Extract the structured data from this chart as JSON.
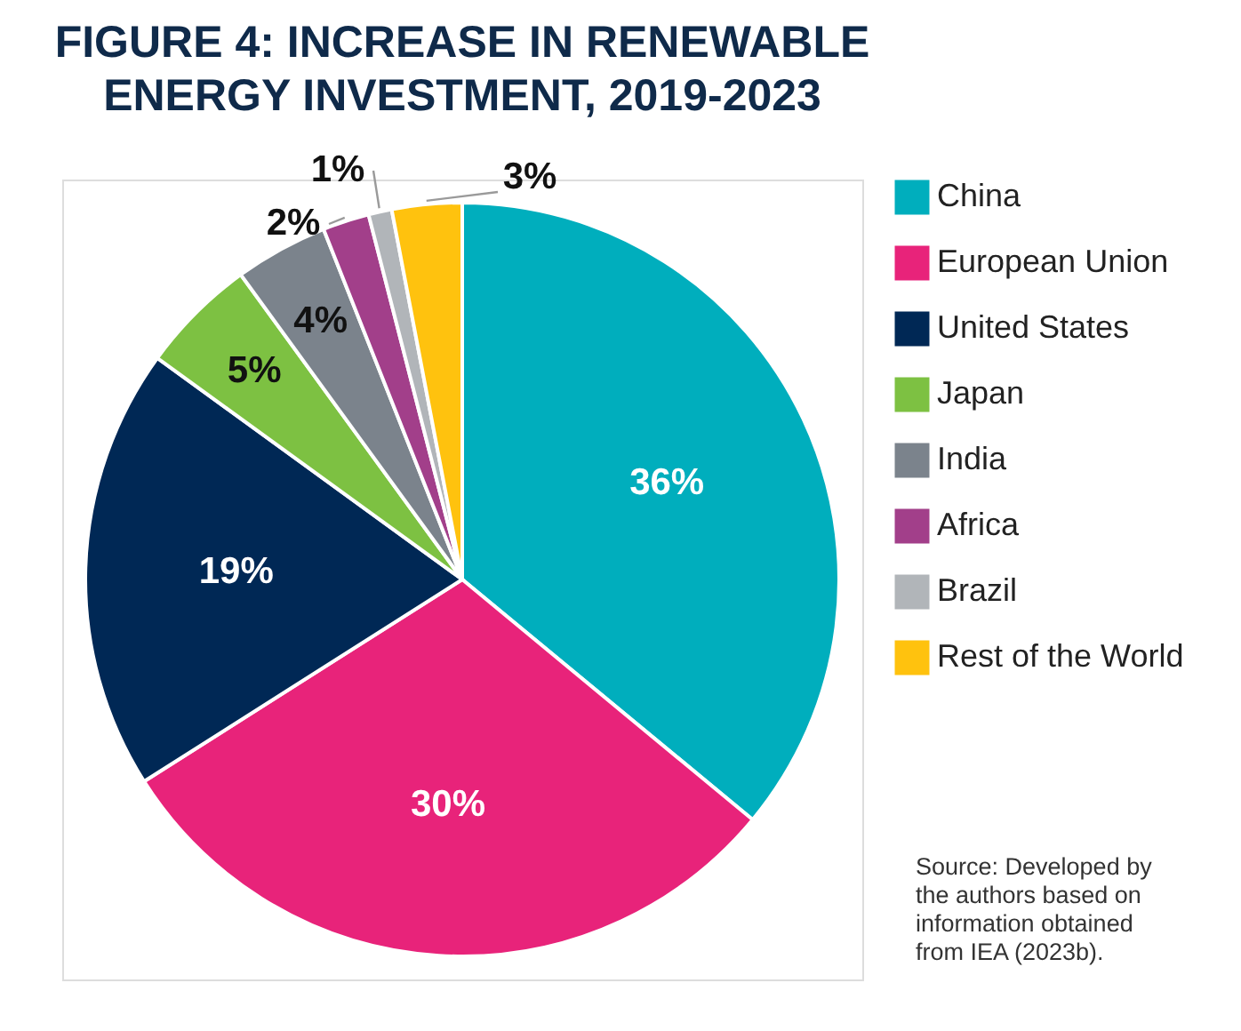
{
  "chart_data": {
    "type": "pie",
    "title": "FIGURE 4: INCREASE IN RENEWABLE\nENERGY INVESTMENT, 2019-2023",
    "categories": [
      "China",
      "European Union",
      "United States",
      "Japan",
      "India",
      "Africa",
      "Brazil",
      "Rest of the World"
    ],
    "values": [
      36,
      30,
      19,
      5,
      4,
      2,
      1,
      3
    ],
    "colors": [
      "#00aebd",
      "#e8237a",
      "#002855",
      "#7dc142",
      "#7b838c",
      "#a23f8a",
      "#b1b5b9",
      "#ffc20e"
    ],
    "value_labels": [
      "36%",
      "30%",
      "19%",
      "5%",
      "4%",
      "2%",
      "1%",
      "3%"
    ],
    "legend": "right",
    "annotations": [
      "Source: Developed by the authors based on information obtained from IEA (2023b)."
    ]
  }
}
